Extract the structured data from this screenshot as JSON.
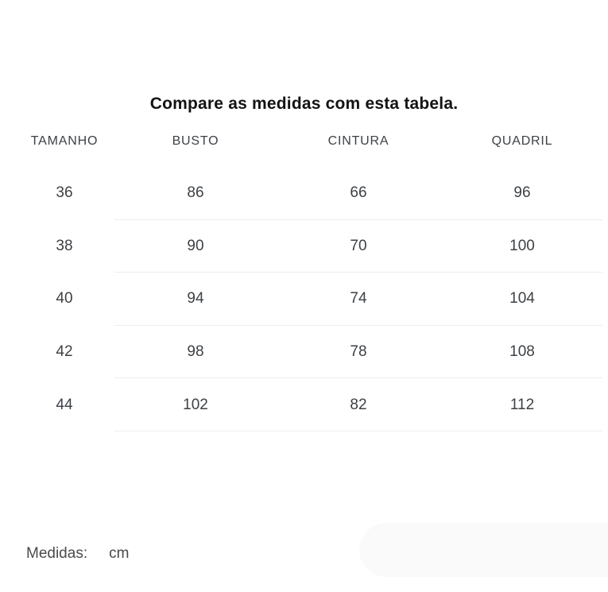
{
  "title": "Compare as medidas com esta tabela.",
  "table": {
    "columns": [
      "TAMANHO",
      "BUSTO",
      "CINTURA",
      "QUADRIL"
    ],
    "rows": [
      [
        "36",
        "86",
        "66",
        "96"
      ],
      [
        "38",
        "90",
        "70",
        "100"
      ],
      [
        "40",
        "94",
        "74",
        "104"
      ],
      [
        "42",
        "98",
        "78",
        "108"
      ],
      [
        "44",
        "102",
        "82",
        "112"
      ]
    ]
  },
  "footer": {
    "label": "Medidas:",
    "unit": "cm"
  },
  "colors": {
    "title_text": "#131313",
    "table_text": "#3d4145",
    "footer_text": "#4a4a4a",
    "divider": "#ededed",
    "corner_pill": "#fafafa",
    "background": "#ffffff"
  }
}
